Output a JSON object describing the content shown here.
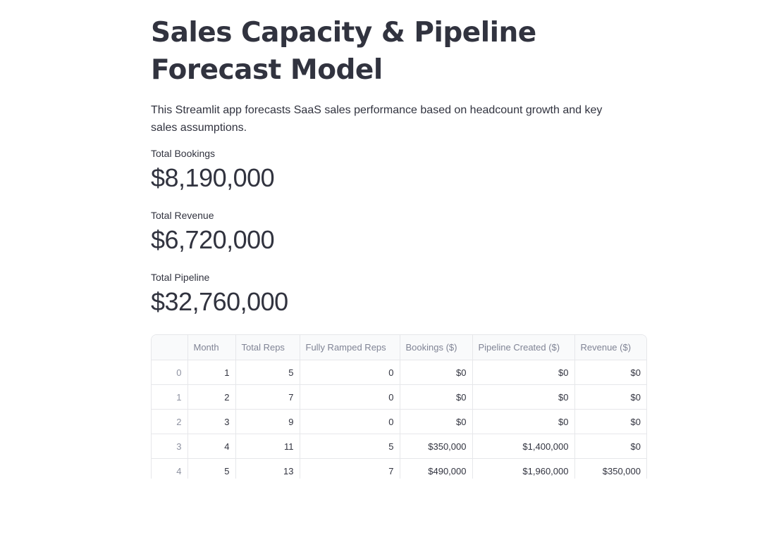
{
  "page": {
    "title": "Sales Capacity & Pipeline Forecast Model",
    "description": "This Streamlit app forecasts SaaS sales performance based on headcount growth and key sales assumptions."
  },
  "metrics": [
    {
      "label": "Total Bookings",
      "value": "$8,190,000"
    },
    {
      "label": "Total Revenue",
      "value": "$6,720,000"
    },
    {
      "label": "Total Pipeline",
      "value": "$32,760,000"
    }
  ],
  "table": {
    "columns": [
      "",
      "Month",
      "Total Reps",
      "Fully Ramped Reps",
      "Bookings ($)",
      "Pipeline Created ($)",
      "Revenue ($)"
    ],
    "rows": [
      [
        "0",
        "1",
        "5",
        "0",
        "$0",
        "$0",
        "$0"
      ],
      [
        "1",
        "2",
        "7",
        "0",
        "$0",
        "$0",
        "$0"
      ],
      [
        "2",
        "3",
        "9",
        "0",
        "$0",
        "$0",
        "$0"
      ],
      [
        "3",
        "4",
        "11",
        "5",
        "$350,000",
        "$1,400,000",
        "$0"
      ],
      [
        "4",
        "5",
        "13",
        "7",
        "$490,000",
        "$1,960,000",
        "$350,000"
      ]
    ]
  }
}
